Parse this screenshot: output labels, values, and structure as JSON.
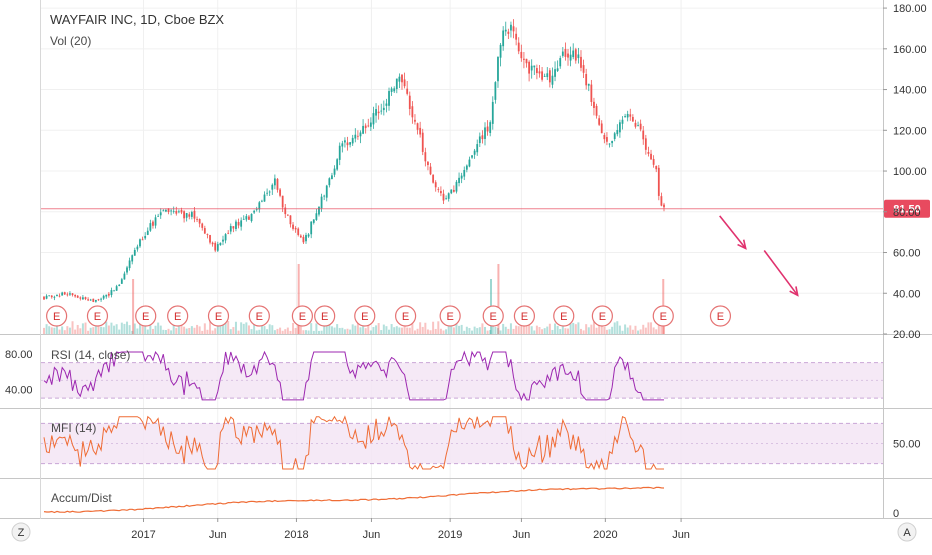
{
  "chart_data": {
    "type": "candlestick",
    "title": "WAYFAIR INC, 1D, Cboe BZX",
    "main_pane": {
      "indicator_label": "Vol (20)",
      "y_ticks": [
        "180.00",
        "160.00",
        "140.00",
        "120.00",
        "100.00",
        "80.00",
        "60.00",
        "40.00",
        "20.00"
      ],
      "ylim": [
        20,
        182
      ],
      "price_line": {
        "value": 81.5,
        "label": "81.50",
        "color": "#e84a5f"
      },
      "price_anchors": [
        {
          "x": 0,
          "y": 38
        },
        {
          "x": 0.3,
          "y": 40
        },
        {
          "x": 0.6,
          "y": 36
        },
        {
          "x": 0.8,
          "y": 38
        },
        {
          "x": 1.0,
          "y": 43
        },
        {
          "x": 1.2,
          "y": 60
        },
        {
          "x": 1.4,
          "y": 72
        },
        {
          "x": 1.6,
          "y": 80
        },
        {
          "x": 2.0,
          "y": 78
        },
        {
          "x": 2.3,
          "y": 62
        },
        {
          "x": 2.5,
          "y": 72
        },
        {
          "x": 2.8,
          "y": 78
        },
        {
          "x": 3.0,
          "y": 88
        },
        {
          "x": 3.1,
          "y": 96
        },
        {
          "x": 3.3,
          "y": 75
        },
        {
          "x": 3.5,
          "y": 65
        },
        {
          "x": 3.7,
          "y": 82
        },
        {
          "x": 4.0,
          "y": 112
        },
        {
          "x": 4.3,
          "y": 120
        },
        {
          "x": 4.6,
          "y": 135
        },
        {
          "x": 4.8,
          "y": 148
        },
        {
          "x": 5.0,
          "y": 125
        },
        {
          "x": 5.2,
          "y": 97
        },
        {
          "x": 5.4,
          "y": 85
        },
        {
          "x": 5.6,
          "y": 95
        },
        {
          "x": 5.8,
          "y": 112
        },
        {
          "x": 6.0,
          "y": 122
        },
        {
          "x": 6.15,
          "y": 165
        },
        {
          "x": 6.3,
          "y": 170
        },
        {
          "x": 6.5,
          "y": 152
        },
        {
          "x": 6.8,
          "y": 145
        },
        {
          "x": 7.0,
          "y": 158
        },
        {
          "x": 7.2,
          "y": 155
        },
        {
          "x": 7.4,
          "y": 133
        },
        {
          "x": 7.6,
          "y": 112
        },
        {
          "x": 7.8,
          "y": 128
        },
        {
          "x": 8.0,
          "y": 120
        },
        {
          "x": 8.15,
          "y": 110
        },
        {
          "x": 8.25,
          "y": 100
        },
        {
          "x": 8.28,
          "y": 88
        },
        {
          "x": 8.35,
          "y": 81.5
        }
      ],
      "volume_spikes": [
        1.2,
        3.43,
        6.02,
        6.12,
        8.34
      ],
      "earnings_markers": {
        "label": "E",
        "x": [
          0.17,
          0.72,
          1.37,
          1.8,
          2.35,
          2.9,
          3.48,
          3.78,
          4.32,
          4.87,
          5.47,
          6.05,
          6.47,
          7.0,
          7.52,
          8.34,
          9.11
        ]
      },
      "annotations": [
        {
          "type": "arrow",
          "from": [
            9.1,
            78
          ],
          "to": [
            9.45,
            62
          ],
          "color": "#e0326e"
        },
        {
          "type": "arrow",
          "from": [
            9.7,
            61
          ],
          "to": [
            10.15,
            39
          ],
          "color": "#e0326e"
        }
      ]
    },
    "rsi_pane": {
      "label": "RSI (14, close)",
      "y_ticks": [
        "80.00",
        "40.00"
      ],
      "ylim": [
        20,
        100
      ],
      "band": [
        30,
        70
      ],
      "color": "#9c27b0"
    },
    "mfi_pane": {
      "label": "MFI (14)",
      "y_ticks": [
        "50.00"
      ],
      "ylim": [
        0,
        100
      ],
      "band": [
        20,
        80
      ],
      "color": "#ef6c35"
    },
    "ad_pane": {
      "label": "Accum/Dist",
      "y_ticks": [
        "0"
      ],
      "color": "#ef6c35"
    },
    "x_axis": {
      "ticks": [
        {
          "x": 1.34,
          "label": "2017"
        },
        {
          "x": 2.34,
          "label": "Jun"
        },
        {
          "x": 3.4,
          "label": "2018"
        },
        {
          "x": 4.41,
          "label": "Jun"
        },
        {
          "x": 5.47,
          "label": "2019"
        },
        {
          "x": 6.43,
          "label": "Jun"
        },
        {
          "x": 7.56,
          "label": "2020"
        },
        {
          "x": 8.58,
          "label": "Jun"
        }
      ]
    },
    "toolbar": {
      "zoom_label": "Z",
      "auto_label": "A"
    }
  }
}
